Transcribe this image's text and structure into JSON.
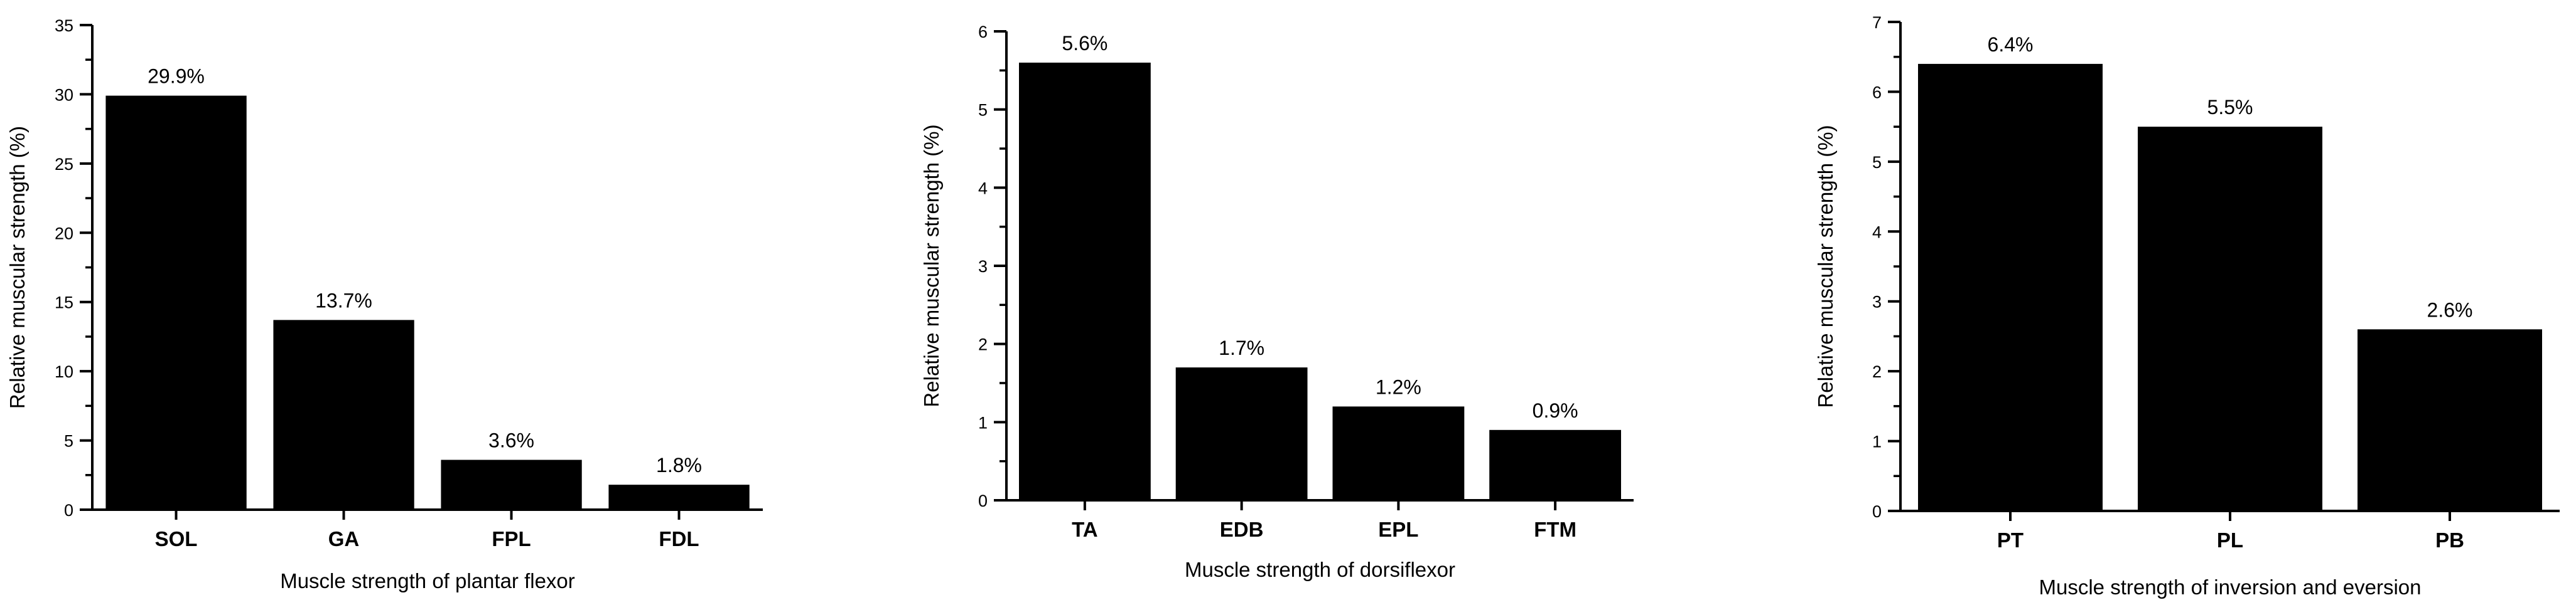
{
  "page": {
    "background_color": "#ffffff",
    "text_color": "#000000"
  },
  "chart_data": [
    {
      "type": "bar",
      "id": "plantar-flexor",
      "title": "",
      "categories": [
        "SOL",
        "GA",
        "FPL",
        "FDL"
      ],
      "values": [
        29.9,
        13.7,
        3.6,
        1.8
      ],
      "bar_labels": [
        "29.9%",
        "13.7%",
        "3.6%",
        "1.8%"
      ],
      "xlabel": "Muscle strength of plantar flexor",
      "ylabel": "Relative muscular strength (%)",
      "ylim": [
        0,
        35
      ],
      "yticks": [
        0,
        5,
        10,
        15,
        20,
        25,
        30,
        35
      ],
      "ytick_labels": [
        "0",
        "5",
        "10",
        "15",
        "20",
        "25",
        "30",
        "35"
      ],
      "minor_tick_step": 2.5,
      "bar_color": "#000000",
      "axis_color": "#000000",
      "grid": false,
      "legend": null
    },
    {
      "type": "bar",
      "id": "dorsiflexor",
      "title": "",
      "categories": [
        "TA",
        "EDB",
        "EPL",
        "FTM"
      ],
      "values": [
        5.6,
        1.7,
        1.2,
        0.9
      ],
      "bar_labels": [
        "5.6%",
        "1.7%",
        "1.2%",
        "0.9%"
      ],
      "xlabel": "Muscle strength of dorsiflexor",
      "ylabel": "Relative muscular strength (%)",
      "ylim": [
        0,
        6
      ],
      "yticks": [
        0,
        1,
        2,
        3,
        4,
        5,
        6
      ],
      "ytick_labels": [
        "0",
        "1",
        "2",
        "3",
        "4",
        "5",
        "6"
      ],
      "minor_tick_step": 0.5,
      "bar_color": "#000000",
      "axis_color": "#000000",
      "grid": false,
      "legend": null
    },
    {
      "type": "bar",
      "id": "inversion-eversion",
      "title": "",
      "categories": [
        "PT",
        "PL",
        "PB"
      ],
      "values": [
        6.4,
        5.5,
        2.6
      ],
      "bar_labels": [
        "6.4%",
        "5.5%",
        "2.6%"
      ],
      "xlabel": "Muscle strength of inversion and eversion",
      "ylabel": "Relative muscular strength (%)",
      "ylim": [
        0,
        7
      ],
      "yticks": [
        0,
        1,
        2,
        3,
        4,
        5,
        6,
        7
      ],
      "ytick_labels": [
        "0",
        "1",
        "2",
        "3",
        "4",
        "5",
        "6",
        "7"
      ],
      "minor_tick_step": 0.5,
      "bar_color": "#000000",
      "axis_color": "#000000",
      "grid": false,
      "legend": null
    }
  ]
}
